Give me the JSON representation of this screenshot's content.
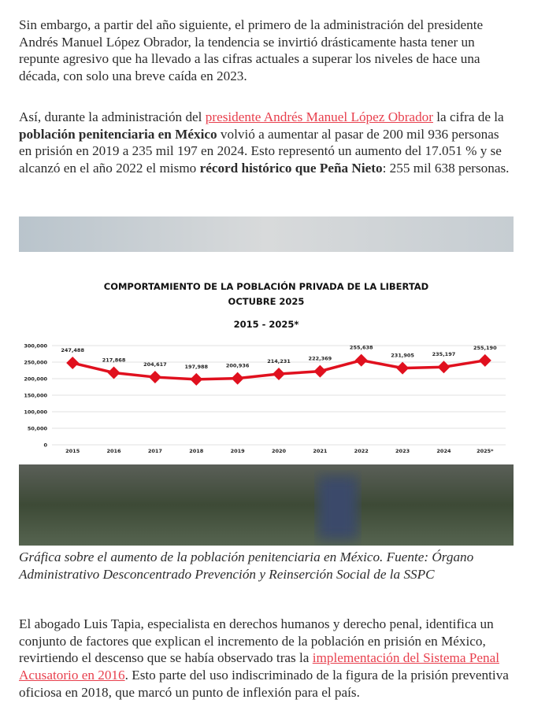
{
  "paragraphs_before": [
    [
      {
        "text": "Sin embargo, a partir del año siguiente, el primero de la administración del presidente Andrés Manuel López Obrador, la tendencia se invirtió drásticamente hasta tener un repunte agresivo que ha llevado a las cifras actuales a superar los niveles de hace una década, con solo una breve caída en 2023."
      }
    ],
    [
      {
        "text": "Así, durante la administración del "
      },
      {
        "text": "presidente Andrés Manuel López Obrador",
        "style": "link"
      },
      {
        "text": " la cifra de la "
      },
      {
        "text": "población penitenciaria en México",
        "style": "bold"
      },
      {
        "text": " volvió a aumentar al pasar de 200 mil 936 personas en prisión en 2019 a 235 mil 197 en 2024. Esto representó un aumento del 17.051 % y se alcanzó en el año 2022 el mismo "
      },
      {
        "text": "récord histórico que Peña Nieto",
        "style": "bold"
      },
      {
        "text": ": 255 mil 638 personas."
      }
    ]
  ],
  "figure": {
    "chart_data": {
      "type": "line",
      "title": "COMPORTAMIENTO DE LA POBLACIÓN PRIVADA DE LA LIBERTAD",
      "subtitle": "OCTUBRE 2025",
      "period": "2015 - 2025*",
      "categories": [
        "2015",
        "2016",
        "2017",
        "2018",
        "2019",
        "2020",
        "2021",
        "2022",
        "2023",
        "2024",
        "2025*"
      ],
      "values": [
        247488,
        217868,
        204617,
        197988,
        200936,
        214231,
        222369,
        255638,
        231905,
        235197,
        255190
      ],
      "value_labels": [
        "247,488",
        "217,868",
        "204,617",
        "197,988",
        "200,936",
        "214,231",
        "222,369",
        "255,638",
        "231,905",
        "235,197",
        "255,190"
      ],
      "color": "#e0101e",
      "ylim": [
        0,
        300000
      ],
      "yticks": [
        0,
        {
          "value": 50000,
          "label": "50,000"
        },
        {
          "value": 100000,
          "label": "100,000"
        },
        {
          "value": 150000,
          "label": "150,000"
        },
        {
          "value": 200000,
          "label": "200,000"
        },
        {
          "value": 250000,
          "label": "250,000"
        },
        {
          "value": 300000,
          "label": "300,000"
        }
      ],
      "grid": true
    },
    "caption": "Gráfica sobre el aumento de la población penitenciaria en México. Fuente: Órgano Administrativo Desconcentrado Prevención y Reinserción Social de la SSPC"
  },
  "paragraphs_after": [
    [
      {
        "text": "El abogado Luis Tapia, especialista en derechos humanos y derecho penal, identifica un conjunto de factores que explican el incremento de la población en prisión en México, revirtiendo el descenso que se había observado tras la "
      },
      {
        "text": "implementación del Sistema Penal Acusatorio en 2016",
        "style": "link"
      },
      {
        "text": ". Esto parte del uso indiscriminado de la figura de la prisión preventiva oficiosa en 2018, que marcó un punto de inflexión para el país."
      }
    ]
  ]
}
